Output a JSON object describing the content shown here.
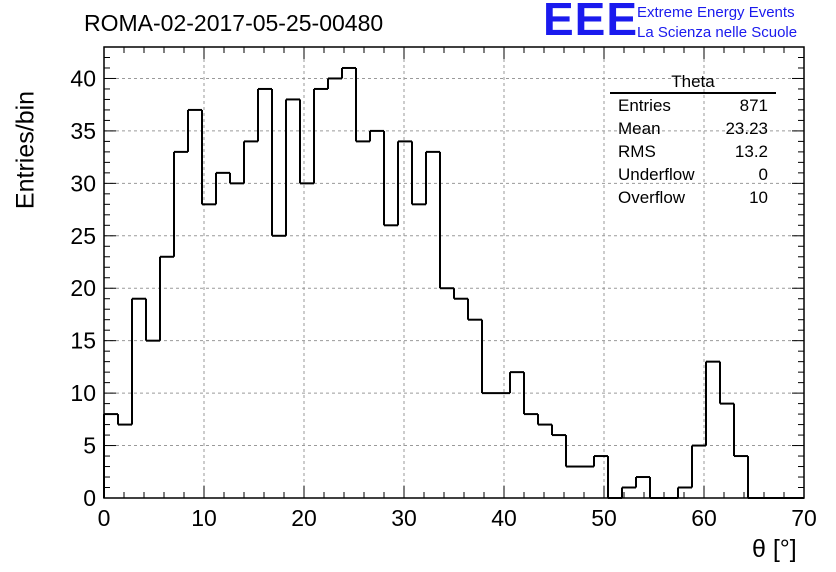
{
  "title": "ROMA-02-2017-05-25-00480",
  "logo": {
    "mark": "EEE",
    "line1": "Extreme Energy Events",
    "line2": "La Scienza nelle Scuole",
    "color": "#1a1aee"
  },
  "stats_box": {
    "title": "Theta",
    "rows": [
      {
        "label": "Entries",
        "value": "871"
      },
      {
        "label": "Mean",
        "value": "23.23"
      },
      {
        "label": "RMS",
        "value": "13.2"
      },
      {
        "label": "Underflow",
        "value": "0"
      },
      {
        "label": "Overflow",
        "value": "10"
      }
    ]
  },
  "chart_data": {
    "type": "bar",
    "histogram": true,
    "title": "ROMA-02-2017-05-25-00480",
    "xlabel": "θ [°]",
    "ylabel": "Entries/bin",
    "xlim": [
      0,
      70
    ],
    "ylim": [
      0,
      43
    ],
    "bin_width": 1.4,
    "bin_edges_start": 0,
    "values": [
      8,
      7,
      19,
      15,
      23,
      33,
      37,
      28,
      31,
      30,
      34,
      39,
      25,
      38,
      30,
      39,
      40,
      41,
      34,
      35,
      26,
      34,
      28,
      33,
      20,
      19,
      17,
      10,
      10,
      12,
      8,
      7,
      6,
      3,
      3,
      4,
      0,
      1,
      2,
      0,
      0,
      1,
      5,
      13,
      9,
      4,
      0,
      0,
      0,
      0
    ],
    "xticks": [
      "0",
      "10",
      "20",
      "30",
      "40",
      "50",
      "60",
      "70"
    ],
    "yticks": [
      "0",
      "5",
      "10",
      "15",
      "20",
      "25",
      "30",
      "35",
      "40"
    ],
    "grid": true,
    "line_color": "#000000"
  }
}
